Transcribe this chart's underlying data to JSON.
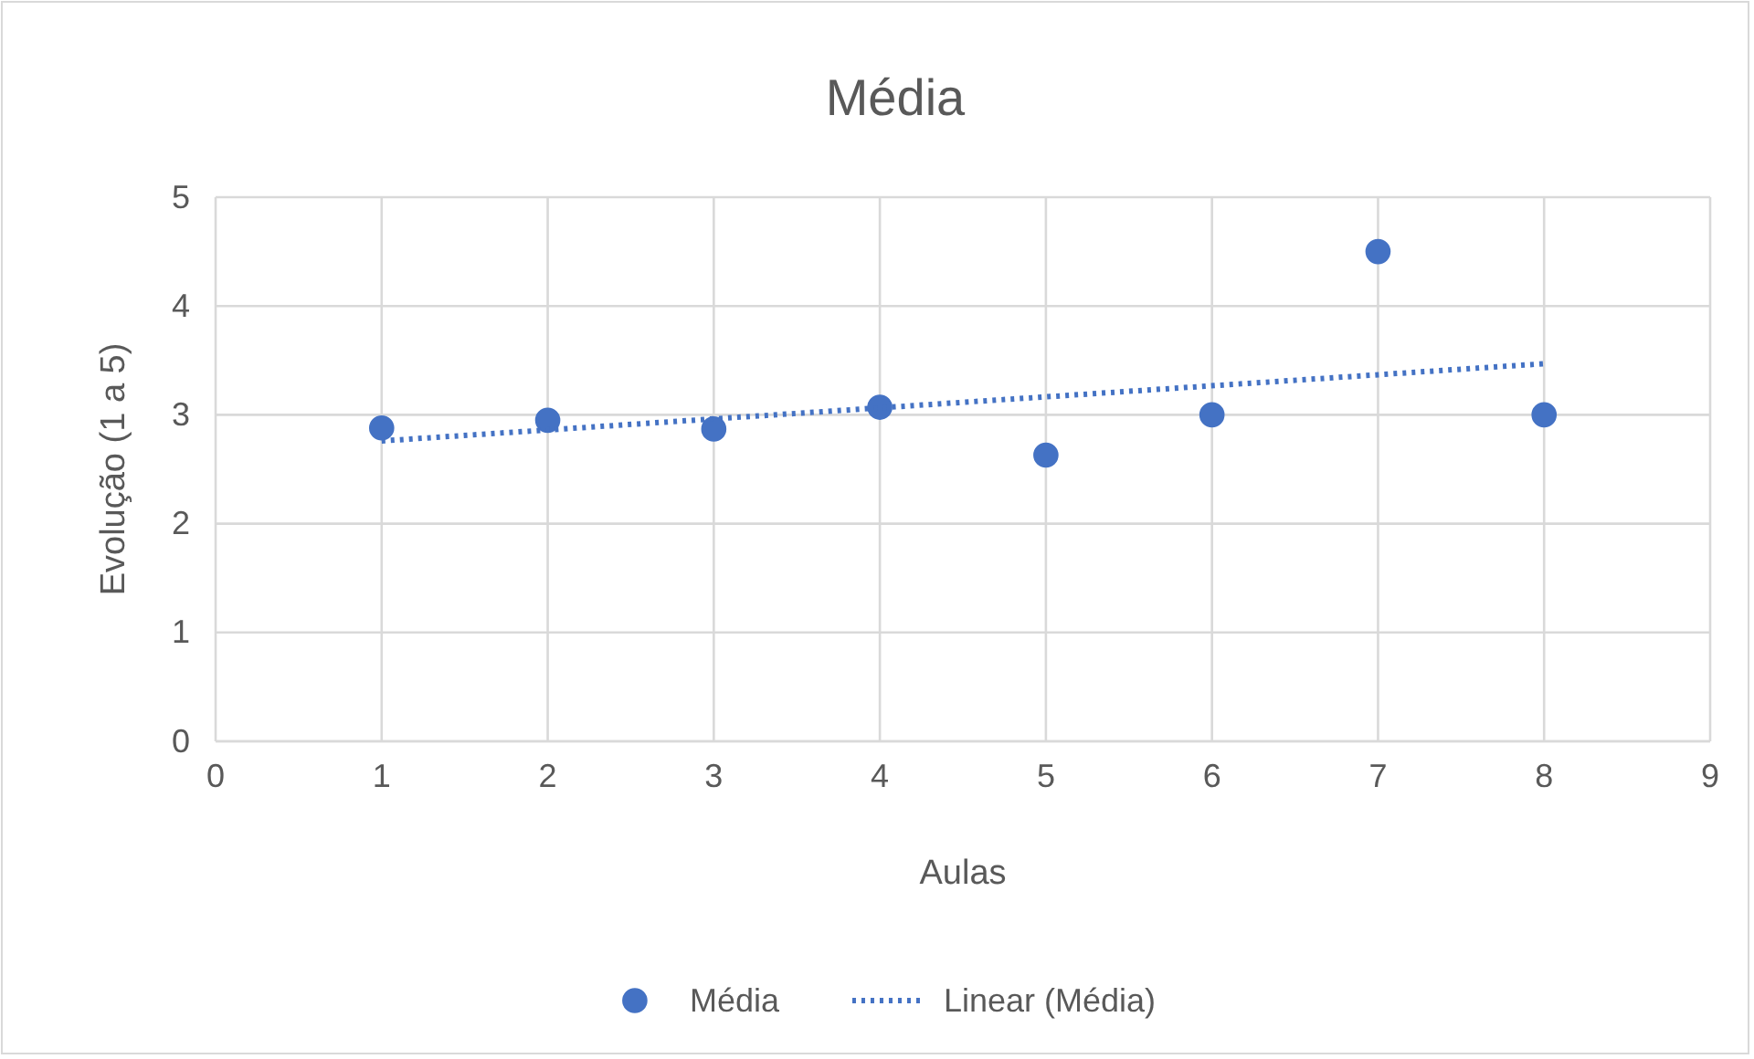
{
  "chart_data": {
    "type": "scatter",
    "title": "Média",
    "xlabel": "Aulas",
    "ylabel": "Evolução (1 a 5)",
    "xlim": [
      0,
      9
    ],
    "xticks": [
      0,
      1,
      2,
      3,
      4,
      5,
      6,
      7,
      8,
      9
    ],
    "ylim": [
      0,
      5
    ],
    "yticks": [
      0,
      1,
      2,
      3,
      4,
      5
    ],
    "grid": true,
    "legend": "bottom",
    "series": [
      {
        "name": "Média",
        "color": "#4472c4",
        "marker": "circle",
        "x": [
          1,
          2,
          3,
          4,
          5,
          6,
          7,
          8
        ],
        "values": [
          2.88,
          2.95,
          2.87,
          3.07,
          2.63,
          3,
          4.5,
          3
        ]
      },
      {
        "name": "Linear (Média)",
        "type": "line",
        "color": "#4472c4",
        "line_style": "dotted",
        "marker": "none",
        "x": [
          1,
          8
        ],
        "values": [
          2.76,
          3.47
        ]
      }
    ]
  }
}
